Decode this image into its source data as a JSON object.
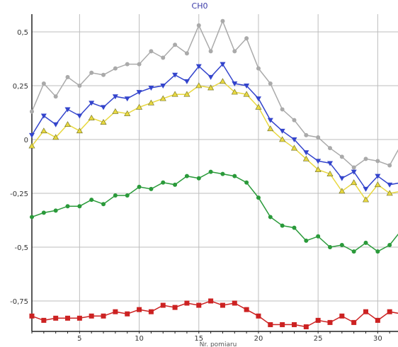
{
  "chart_data": {
    "type": "line",
    "title": "CH0",
    "xlabel": "Nr. pomiaru",
    "ylabel": "",
    "xlim": [
      1,
      32
    ],
    "ylim": [
      -0.8,
      0.55
    ],
    "x_ticks": [
      5,
      10,
      15,
      20,
      25,
      30
    ],
    "y_ticks": [
      -0.75,
      -0.5,
      -0.25,
      0,
      0.25,
      0.5
    ],
    "x_tick_labels": [
      "5",
      "10",
      "15",
      "20",
      "25",
      "30"
    ],
    "y_tick_labels": [
      "-0,75",
      "-0,5",
      "-0,25",
      "0",
      "0,25",
      "0,5"
    ],
    "grid": true,
    "x": [
      1,
      2,
      3,
      4,
      5,
      6,
      7,
      8,
      9,
      10,
      11,
      12,
      13,
      14,
      15,
      16,
      17,
      18,
      19,
      20,
      21,
      22,
      23,
      24,
      25,
      26,
      27,
      28,
      29,
      30,
      31,
      32
    ],
    "series": [
      {
        "color": "#aaaaaa",
        "marker": "circle",
        "values": [
          0.13,
          0.26,
          0.2,
          0.29,
          0.25,
          0.31,
          0.3,
          0.33,
          0.35,
          0.35,
          0.41,
          0.38,
          0.44,
          0.4,
          0.53,
          0.41,
          0.55,
          0.41,
          0.47,
          0.33,
          0.26,
          0.14,
          0.09,
          0.02,
          0.01,
          -0.04,
          -0.08,
          -0.13,
          -0.09,
          -0.1,
          -0.12,
          -0.02
        ]
      },
      {
        "color": "#3344cc",
        "marker": "triangle-down",
        "values": [
          0.02,
          0.11,
          0.07,
          0.14,
          0.11,
          0.17,
          0.15,
          0.2,
          0.19,
          0.22,
          0.24,
          0.25,
          0.3,
          0.27,
          0.34,
          0.29,
          0.35,
          0.26,
          0.25,
          0.19,
          0.09,
          0.04,
          0.0,
          -0.06,
          -0.1,
          -0.11,
          -0.18,
          -0.15,
          -0.23,
          -0.17,
          -0.21,
          -0.2
        ]
      },
      {
        "color": "#e8d840",
        "marker": "triangle-up",
        "values": [
          -0.03,
          0.04,
          0.01,
          0.07,
          0.04,
          0.1,
          0.08,
          0.13,
          0.12,
          0.15,
          0.17,
          0.19,
          0.21,
          0.21,
          0.25,
          0.24,
          0.27,
          0.22,
          0.21,
          0.15,
          0.05,
          0.0,
          -0.04,
          -0.09,
          -0.14,
          -0.16,
          -0.24,
          -0.2,
          -0.28,
          -0.21,
          -0.25,
          -0.24
        ]
      },
      {
        "color": "#2a9a3a",
        "marker": "circle",
        "values": [
          -0.36,
          -0.34,
          -0.33,
          -0.31,
          -0.31,
          -0.28,
          -0.3,
          -0.26,
          -0.26,
          -0.22,
          -0.23,
          -0.2,
          -0.21,
          -0.17,
          -0.18,
          -0.15,
          -0.16,
          -0.17,
          -0.2,
          -0.27,
          -0.36,
          -0.4,
          -0.41,
          -0.47,
          -0.45,
          -0.5,
          -0.49,
          -0.52,
          -0.48,
          -0.52,
          -0.49,
          -0.42
        ]
      },
      {
        "color": "#cc2222",
        "marker": "square",
        "values": [
          -0.82,
          -0.84,
          -0.83,
          -0.83,
          -0.83,
          -0.82,
          -0.82,
          -0.8,
          -0.81,
          -0.79,
          -0.8,
          -0.77,
          -0.78,
          -0.76,
          -0.77,
          -0.75,
          -0.77,
          -0.76,
          -0.79,
          -0.82,
          -0.86,
          -0.86,
          -0.86,
          -0.87,
          -0.84,
          -0.85,
          -0.82,
          -0.85,
          -0.8,
          -0.84,
          -0.8,
          -0.81
        ]
      }
    ]
  }
}
